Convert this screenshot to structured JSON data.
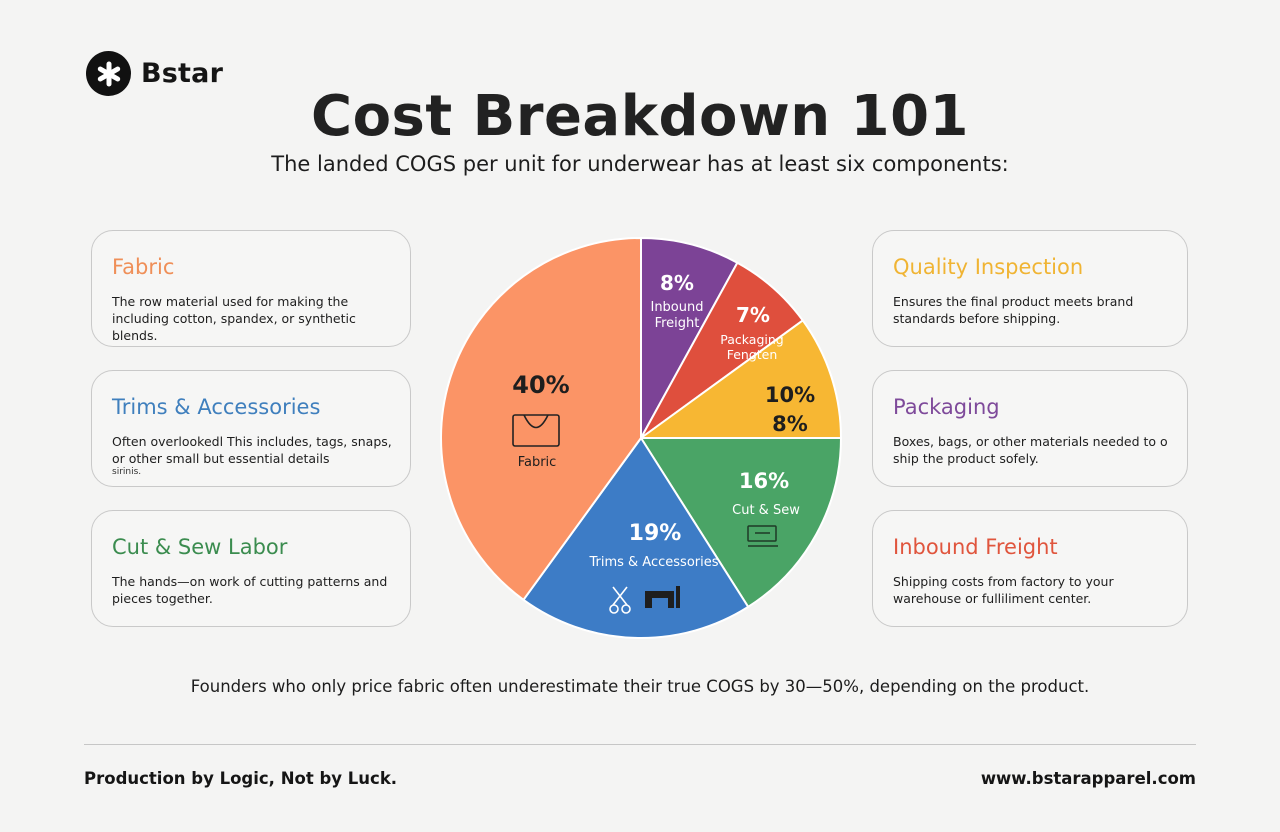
{
  "brand": {
    "name": "Bstar",
    "logo_icon": "asterisk-logo-icon"
  },
  "header": {
    "title": "Cost Breakdown 101",
    "subtitle": "The landed COGS per unit for underwear has at least six components:"
  },
  "cards_left": [
    {
      "title": "Fabric",
      "color": "#ef8f58",
      "desc": "The row material used for making the including cotton, spandex, or synthetic blends."
    },
    {
      "title": "Trims & Accessories",
      "color": "#3f7fbd",
      "desc": "Often overlookedl This includes, tags, snaps, or other small but essential details",
      "note": "sirinis."
    },
    {
      "title": "Cut & Sew Labor",
      "color": "#3b8c4f",
      "desc": "The hands—on work of cutting patterns and pieces together."
    }
  ],
  "cards_right": [
    {
      "title": "Quality Inspection",
      "color": "#f0b433",
      "desc": "Ensures the final product meets brand standards before shipping."
    },
    {
      "title": "Packaging",
      "color": "#7e4a9a",
      "desc": "Boxes, bags, or other materials needed to o ship the product sofely."
    },
    {
      "title": "Inbound Freight",
      "color": "#e0553d",
      "desc": "Shipping costs from factory to your warehouse or fulliliment center."
    }
  ],
  "chart_data": {
    "type": "pie",
    "title": "",
    "slices": [
      {
        "label": "Inbound Freight",
        "value_label": "8%",
        "value": 8,
        "color": "#7c4396",
        "icon": ""
      },
      {
        "label": "Packaging Fengten",
        "value_label": "7%",
        "value": 7,
        "color": "#df4f3d",
        "icon": ""
      },
      {
        "label": "",
        "value_label": "10%",
        "value2_label": "8%",
        "value": 10,
        "color": "#f7b733",
        "icon": ""
      },
      {
        "label": "Cut & Sew",
        "value_label": "16%",
        "value": 16,
        "color": "#4aa466",
        "icon": "sewing-machine-icon"
      },
      {
        "label": "Trims & Accessories",
        "value_label": "19%",
        "value": 19,
        "color": "#3d7cc6",
        "icon": "scissors-sewing-machine-icon"
      },
      {
        "label": "Fabric",
        "value_label": "40%",
        "value": 40,
        "color": "#fb9466",
        "icon": "tote-bag-icon"
      }
    ]
  },
  "footnote": "Founders who only price fabric often underestimate their true COGS by 30—50%, depending on the product.",
  "footer": {
    "tagline": "Production by Logic, Not by Luck.",
    "website": "www.bstarapparel.com"
  }
}
